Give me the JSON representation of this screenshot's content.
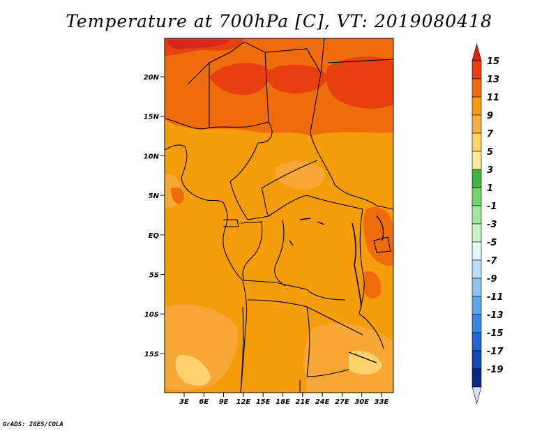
{
  "title": "Temperature at 700hPa [C], VT: 2019080418",
  "credit": "GrADS: IGES/COLA",
  "map": {
    "lat_ticks": [
      "20N",
      "15N",
      "10N",
      "5N",
      "EQ",
      "5S",
      "10S",
      "15S"
    ],
    "lon_ticks": [
      "3E",
      "6E",
      "9E",
      "12E",
      "15E",
      "18E",
      "21E",
      "24E",
      "27E",
      "30E",
      "33E"
    ],
    "fill_colors": {
      "c7_9": "#f7a735",
      "c9_11": "#f59c0a",
      "c11_13": "#ef6c0d",
      "c13_15": "#e8400f",
      "c15": "#d7261a",
      "c5_7": "#fbd36a",
      "c3_5": "#fce9a0"
    }
  },
  "colorbar": {
    "levels": [
      {
        "label": "15",
        "color": "#e8400f"
      },
      {
        "label": "13",
        "color": "#ef6c0d"
      },
      {
        "label": "11",
        "color": "#f59c0a"
      },
      {
        "label": "9",
        "color": "#f7b03e"
      },
      {
        "label": "7",
        "color": "#fbd36a"
      },
      {
        "label": "5",
        "color": "#fce9a0"
      },
      {
        "label": "3",
        "color": "#3bb53b"
      },
      {
        "label": "1",
        "color": "#6fd46f"
      },
      {
        "label": "-1",
        "color": "#9ee99e"
      },
      {
        "label": "-3",
        "color": "#c8f4c8"
      },
      {
        "label": "-5",
        "color": "#e3f7f7"
      },
      {
        "label": "-7",
        "color": "#b9dcf7"
      },
      {
        "label": "-9",
        "color": "#8cc4f2"
      },
      {
        "label": "-11",
        "color": "#5ea6ea"
      },
      {
        "label": "-13",
        "color": "#3a86e0"
      },
      {
        "label": "-15",
        "color": "#2166d4"
      },
      {
        "label": "-17",
        "color": "#124ab8"
      },
      {
        "label": "-19",
        "color": "#0a2a8a"
      }
    ],
    "top_color": "#d7261a",
    "bottom_color": "#dcdcf5"
  }
}
